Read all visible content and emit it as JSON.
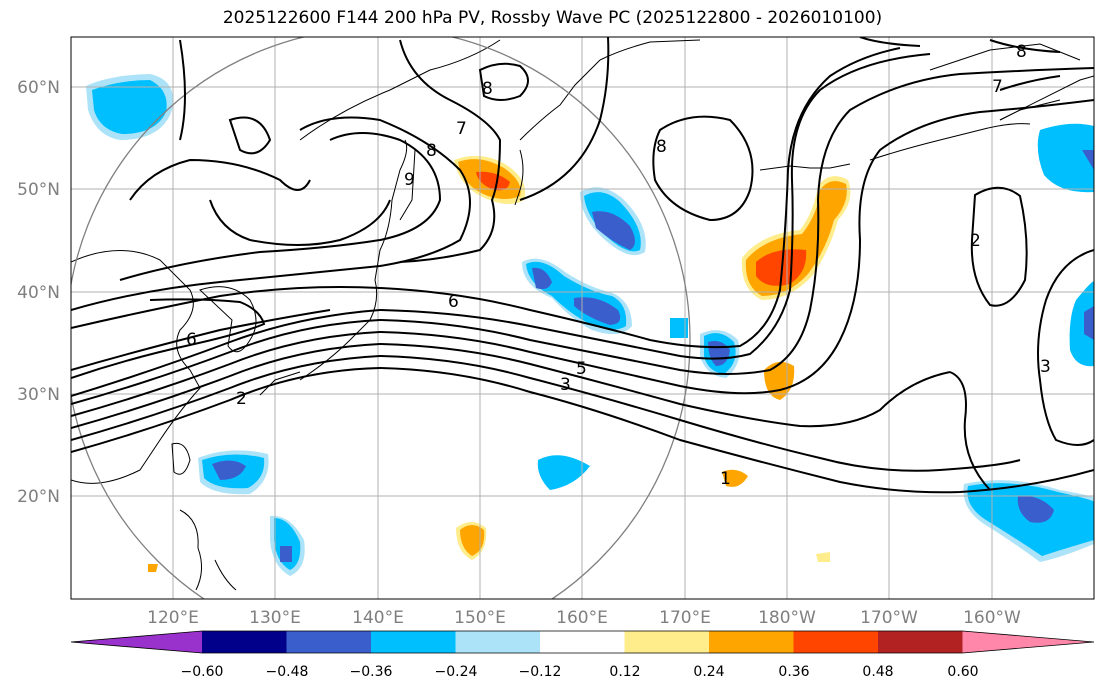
{
  "title": "2025122600 F144 200 hPa PV, Rossby Wave PC (2025122800 - 2026010100)",
  "map": {
    "lat_labels": [
      "60°N",
      "50°N",
      "40°N",
      "30°N",
      "20°N"
    ],
    "lon_labels": [
      "120°E",
      "130°E",
      "140°E",
      "150°E",
      "160°E",
      "170°E",
      "180°W",
      "170°W",
      "160°W"
    ],
    "contour_labels": [
      "8",
      "7",
      "8",
      "9",
      "8",
      "6",
      "6",
      "5",
      "3",
      "2",
      "1",
      "2",
      "3",
      "7",
      "8"
    ],
    "colors": {
      "land_line": "#000000",
      "grid": "#b0b0b0",
      "circle": "#808080"
    }
  },
  "colorbar": {
    "tick_labels": [
      "−0.60",
      "−0.48",
      "−0.36",
      "−0.24",
      "−0.12",
      "0.12",
      "0.24",
      "0.36",
      "0.48",
      "0.60"
    ],
    "colors": [
      "#9932cc",
      "#00008b",
      "#3a5fcd",
      "#00bfff",
      "#ade3f8",
      "#ffffff",
      "#ffec8b",
      "#ffa500",
      "#ff4500",
      "#b22222",
      "#ff88aa"
    ]
  }
}
